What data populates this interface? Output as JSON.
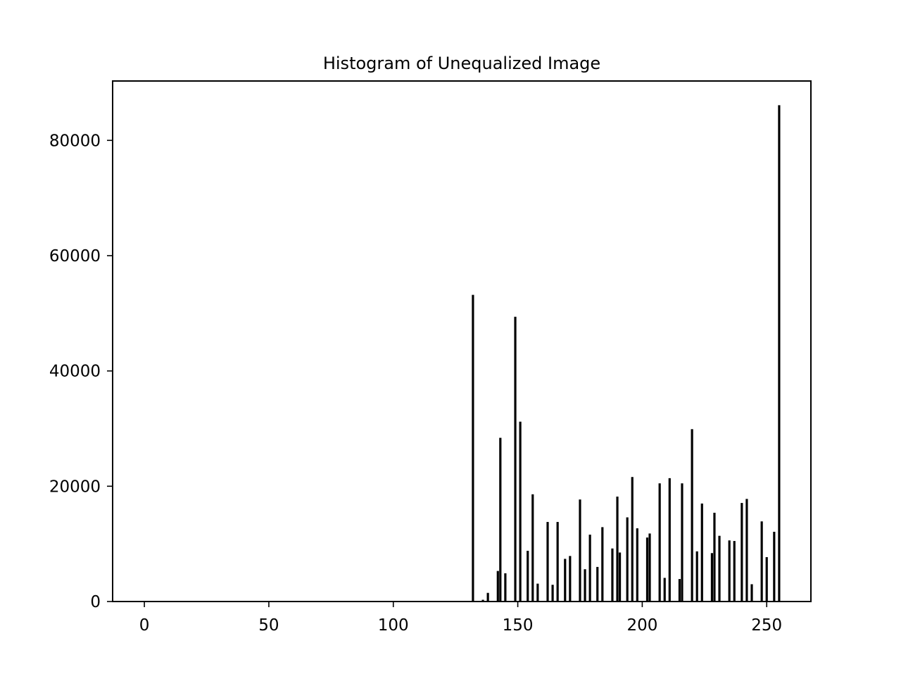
{
  "chart_data": {
    "type": "bar",
    "title": "Histogram of Unequalized Image",
    "xlabel": "",
    "ylabel": "",
    "xlim": [
      -12.75,
      267.75
    ],
    "ylim": [
      0,
      90300
    ],
    "xticks": [
      0,
      50,
      100,
      150,
      200,
      250
    ],
    "yticks": [
      0,
      20000,
      40000,
      60000,
      80000
    ],
    "grid": false,
    "legend": false,
    "bar_color": "#000000",
    "x": [
      132,
      136,
      138,
      142,
      143,
      145,
      149,
      151,
      154,
      156,
      158,
      162,
      164,
      166,
      169,
      171,
      175,
      177,
      179,
      182,
      184,
      188,
      190,
      191,
      194,
      196,
      198,
      202,
      203,
      207,
      209,
      211,
      215,
      216,
      220,
      222,
      224,
      228,
      229,
      231,
      235,
      237,
      240,
      242,
      244,
      248,
      250,
      253,
      255
    ],
    "values": [
      53200,
      300,
      1500,
      5300,
      28400,
      4900,
      49400,
      31200,
      8800,
      18600,
      3100,
      13800,
      2900,
      13800,
      7400,
      7900,
      17700,
      5600,
      11600,
      6000,
      12900,
      9200,
      18200,
      8500,
      14600,
      21600,
      12700,
      11100,
      11800,
      20500,
      4100,
      21400,
      3900,
      20500,
      29900,
      8700,
      17000,
      8400,
      15400,
      11400,
      10600,
      10500,
      17100,
      17800,
      3000,
      13900,
      7700,
      12100,
      86100
    ]
  }
}
